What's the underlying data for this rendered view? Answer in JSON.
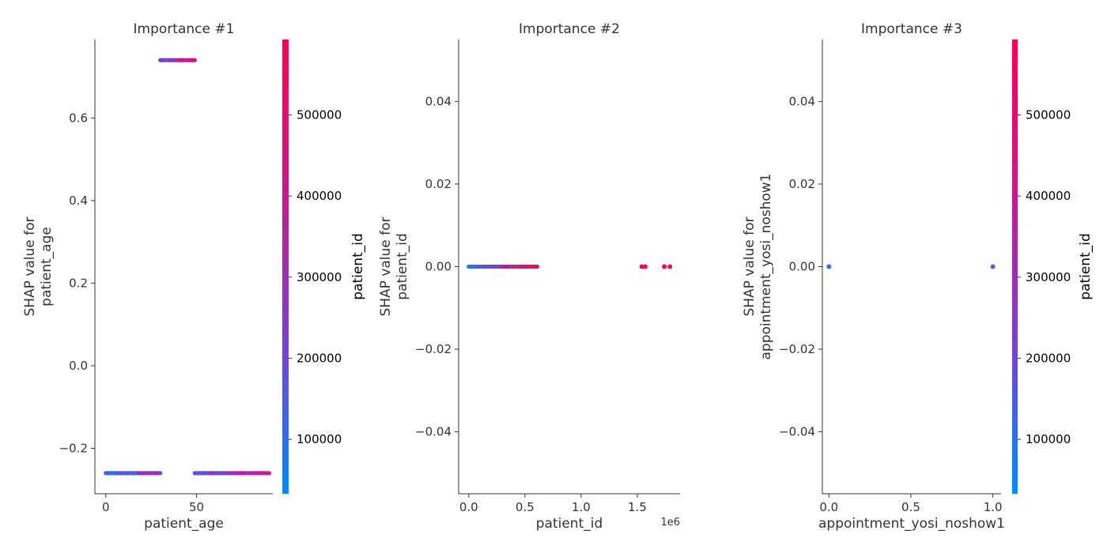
{
  "colors": {
    "colormap": [
      "#008afb",
      "#7a40d0",
      "#c71a8e",
      "#ff0052"
    ],
    "axis": "#333333"
  },
  "chart_data": [
    {
      "type": "scatter",
      "title": "Importance #1",
      "xlabel": "patient_age",
      "ylabel": [
        "SHAP value for",
        "patient_age"
      ],
      "xlim": [
        -6,
        92
      ],
      "ylim": [
        -0.31,
        0.79
      ],
      "xticks": [
        {
          "v": 0,
          "label": "0"
        },
        {
          "v": 50,
          "label": "50"
        }
      ],
      "yticks": [
        {
          "v": -0.2,
          "label": "−0.2"
        },
        {
          "v": 0.0,
          "label": "0.0"
        },
        {
          "v": 0.2,
          "label": "0.2"
        },
        {
          "v": 0.4,
          "label": "0.4"
        },
        {
          "v": 0.6,
          "label": "0.6"
        }
      ],
      "x_offset_label": "",
      "segments": [
        {
          "x_start": 0,
          "x_end": 30,
          "y": -0.26,
          "color_start": 0.12,
          "color_end": 0.5
        },
        {
          "x_start": 30,
          "x_end": 49,
          "y": 0.74,
          "color_start": 0.35,
          "color_end": 0.7
        },
        {
          "x_start": 49,
          "x_end": 90,
          "y": -0.26,
          "color_start": 0.2,
          "color_end": 0.75
        }
      ],
      "colorbar": {
        "label": "patient_id",
        "range": [
          33000,
          593000
        ],
        "ticks": [
          {
            "v": 100000,
            "label": "100000"
          },
          {
            "v": 200000,
            "label": "200000"
          },
          {
            "v": 300000,
            "label": "300000"
          },
          {
            "v": 400000,
            "label": "400000"
          },
          {
            "v": 500000,
            "label": "500000"
          }
        ]
      }
    },
    {
      "type": "scatter",
      "title": "Importance #2",
      "xlabel": "patient_id",
      "ylabel": [
        "SHAP value for",
        "patient_id"
      ],
      "xlim": [
        -90000,
        1880000
      ],
      "ylim": [
        -0.055,
        0.055
      ],
      "xticks": [
        {
          "v": 0,
          "label": "0.0"
        },
        {
          "v": 500000,
          "label": "0.5"
        },
        {
          "v": 1000000,
          "label": "1.0"
        },
        {
          "v": 1500000,
          "label": "1.5"
        }
      ],
      "yticks": [
        {
          "v": -0.04,
          "label": "−0.04"
        },
        {
          "v": -0.02,
          "label": "−0.02"
        },
        {
          "v": 0.0,
          "label": "0.00"
        },
        {
          "v": 0.02,
          "label": "0.02"
        },
        {
          "v": 0.04,
          "label": "0.04"
        }
      ],
      "x_offset_label": "1e6",
      "segments": [
        {
          "x_start": 0,
          "x_end": 610000,
          "y": 0,
          "color_start": 0.0,
          "color_end": 1.0
        }
      ],
      "points": [
        {
          "x": 1540000,
          "y": 0,
          "c": 1.0
        },
        {
          "x": 1570000,
          "y": 0,
          "c": 1.0
        },
        {
          "x": 1740000,
          "y": 0,
          "c": 1.0
        },
        {
          "x": 1790000,
          "y": 0,
          "c": 1.0
        }
      ]
    },
    {
      "type": "scatter",
      "title": "Importance #3",
      "xlabel": "appointment_yosi_noshow1",
      "ylabel": [
        "SHAP value for",
        "appointment_yosi_noshow1"
      ],
      "xlim": [
        -0.04,
        1.05
      ],
      "ylim": [
        -0.055,
        0.055
      ],
      "xticks": [
        {
          "v": 0,
          "label": "0.0"
        },
        {
          "v": 0.5,
          "label": "0.5"
        },
        {
          "v": 1,
          "label": "1.0"
        }
      ],
      "yticks": [
        {
          "v": -0.04,
          "label": "−0.04"
        },
        {
          "v": -0.02,
          "label": "−0.02"
        },
        {
          "v": 0.0,
          "label": "0.00"
        },
        {
          "v": 0.02,
          "label": "0.02"
        },
        {
          "v": 0.04,
          "label": "0.04"
        }
      ],
      "x_offset_label": "",
      "points": [
        {
          "x": 0,
          "y": 0,
          "c": 0.15
        },
        {
          "x": 1,
          "y": 0,
          "c": 0.15
        }
      ],
      "colorbar": {
        "label": "patient_id",
        "range": [
          33000,
          593000
        ],
        "ticks": [
          {
            "v": 100000,
            "label": "100000"
          },
          {
            "v": 200000,
            "label": "200000"
          },
          {
            "v": 300000,
            "label": "300000"
          },
          {
            "v": 400000,
            "label": "400000"
          },
          {
            "v": 500000,
            "label": "500000"
          }
        ]
      }
    }
  ]
}
